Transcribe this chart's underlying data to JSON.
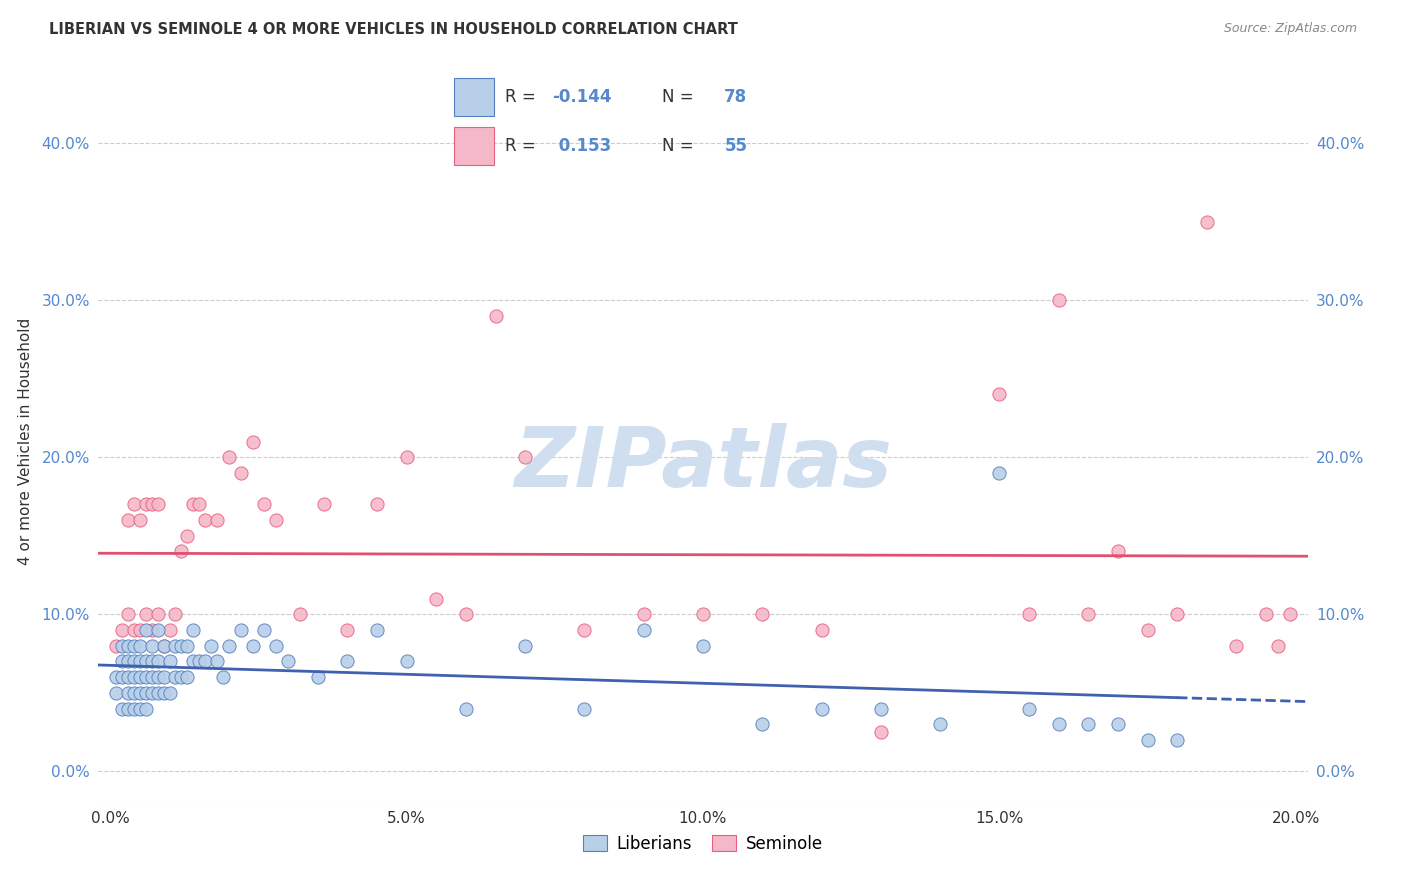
{
  "title": "LIBERIAN VS SEMINOLE 4 OR MORE VEHICLES IN HOUSEHOLD CORRELATION CHART",
  "source": "Source: ZipAtlas.com",
  "ylabel_label": "4 or more Vehicles in Household",
  "xlim": [
    -0.002,
    0.202
  ],
  "ylim": [
    -0.02,
    0.44
  ],
  "xtick_vals": [
    0.0,
    0.05,
    0.1,
    0.15,
    0.2
  ],
  "xtick_labels": [
    "0.0%",
    "5.0%",
    "10.0%",
    "15.0%",
    "20.0%"
  ],
  "ytick_vals": [
    0.0,
    0.1,
    0.2,
    0.3,
    0.4
  ],
  "ytick_labels": [
    "0.0%",
    "10.0%",
    "20.0%",
    "30.0%",
    "40.0%"
  ],
  "blue_R": -0.144,
  "blue_N": 78,
  "pink_R": 0.153,
  "pink_N": 55,
  "legend_label_blue": "Liberians",
  "legend_label_pink": "Seminole",
  "blue_fill": "#b8cfe8",
  "pink_fill": "#f5b8c8",
  "blue_edge": "#5580c0",
  "pink_edge": "#e86080",
  "blue_line": "#4060b0",
  "pink_line": "#e05070",
  "text_color": "#333333",
  "axis_color": "#5588cc",
  "grid_color": "#cccccc",
  "watermark_color": "#d0dff0",
  "background": "#ffffff",
  "blue_x": [
    0.001,
    0.001,
    0.002,
    0.002,
    0.002,
    0.002,
    0.003,
    0.003,
    0.003,
    0.003,
    0.003,
    0.004,
    0.004,
    0.004,
    0.004,
    0.004,
    0.005,
    0.005,
    0.005,
    0.005,
    0.005,
    0.006,
    0.006,
    0.006,
    0.006,
    0.006,
    0.007,
    0.007,
    0.007,
    0.007,
    0.008,
    0.008,
    0.008,
    0.008,
    0.009,
    0.009,
    0.009,
    0.01,
    0.01,
    0.011,
    0.011,
    0.012,
    0.012,
    0.013,
    0.013,
    0.014,
    0.014,
    0.015,
    0.016,
    0.017,
    0.018,
    0.019,
    0.02,
    0.022,
    0.024,
    0.026,
    0.028,
    0.03,
    0.035,
    0.04,
    0.045,
    0.05,
    0.06,
    0.07,
    0.08,
    0.09,
    0.1,
    0.11,
    0.12,
    0.13,
    0.14,
    0.15,
    0.155,
    0.16,
    0.165,
    0.17,
    0.175,
    0.18
  ],
  "blue_y": [
    0.05,
    0.06,
    0.04,
    0.06,
    0.07,
    0.08,
    0.04,
    0.05,
    0.06,
    0.07,
    0.08,
    0.04,
    0.05,
    0.06,
    0.07,
    0.08,
    0.04,
    0.05,
    0.06,
    0.07,
    0.08,
    0.04,
    0.05,
    0.06,
    0.07,
    0.09,
    0.05,
    0.06,
    0.07,
    0.08,
    0.05,
    0.06,
    0.07,
    0.09,
    0.05,
    0.06,
    0.08,
    0.05,
    0.07,
    0.06,
    0.08,
    0.06,
    0.08,
    0.06,
    0.08,
    0.07,
    0.09,
    0.07,
    0.07,
    0.08,
    0.07,
    0.06,
    0.08,
    0.09,
    0.08,
    0.09,
    0.08,
    0.07,
    0.06,
    0.07,
    0.09,
    0.07,
    0.04,
    0.08,
    0.04,
    0.09,
    0.08,
    0.03,
    0.04,
    0.04,
    0.03,
    0.19,
    0.04,
    0.03,
    0.03,
    0.03,
    0.02,
    0.02
  ],
  "pink_x": [
    0.001,
    0.002,
    0.003,
    0.003,
    0.004,
    0.004,
    0.005,
    0.005,
    0.006,
    0.006,
    0.007,
    0.007,
    0.008,
    0.008,
    0.009,
    0.01,
    0.011,
    0.012,
    0.013,
    0.014,
    0.015,
    0.016,
    0.018,
    0.02,
    0.022,
    0.024,
    0.026,
    0.028,
    0.032,
    0.036,
    0.04,
    0.045,
    0.05,
    0.055,
    0.06,
    0.065,
    0.07,
    0.08,
    0.09,
    0.1,
    0.11,
    0.12,
    0.13,
    0.15,
    0.155,
    0.16,
    0.165,
    0.17,
    0.175,
    0.18,
    0.185,
    0.19,
    0.195,
    0.197,
    0.199
  ],
  "pink_y": [
    0.08,
    0.09,
    0.1,
    0.16,
    0.09,
    0.17,
    0.09,
    0.16,
    0.1,
    0.17,
    0.09,
    0.17,
    0.1,
    0.17,
    0.08,
    0.09,
    0.1,
    0.14,
    0.15,
    0.17,
    0.17,
    0.16,
    0.16,
    0.2,
    0.19,
    0.21,
    0.17,
    0.16,
    0.1,
    0.17,
    0.09,
    0.17,
    0.2,
    0.11,
    0.1,
    0.29,
    0.2,
    0.09,
    0.1,
    0.1,
    0.1,
    0.09,
    0.025,
    0.24,
    0.1,
    0.3,
    0.1,
    0.14,
    0.09,
    0.1,
    0.35,
    0.08,
    0.1,
    0.08,
    0.1
  ]
}
